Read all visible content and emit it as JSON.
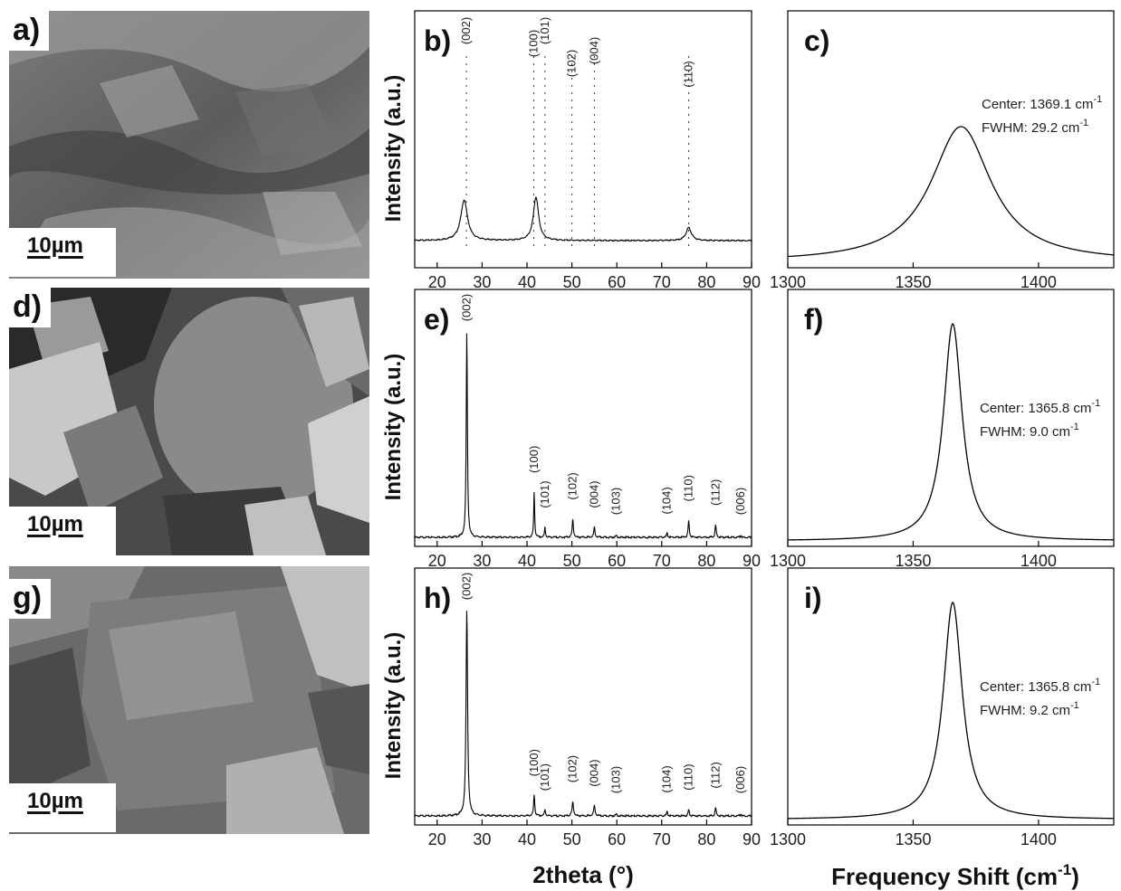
{
  "sem_panels": [
    {
      "letter": "a)",
      "scale_label": "10µm",
      "texture": "rough"
    },
    {
      "letter": "d)",
      "scale_label": "10µm",
      "texture": "flakes"
    },
    {
      "letter": "g)",
      "scale_label": "10µm",
      "texture": "flakes"
    }
  ],
  "axis_labels": {
    "xrd_ylabel": "Intensity (a.u.)",
    "xrd_xlabel": "2theta (°)",
    "raman_xlabel": "Frequency Shift (cm",
    "raman_xlabel_sup": "-1",
    "raman_xlabel_close": ")"
  },
  "chart_data": [
    {
      "panel": "b)",
      "type": "line",
      "xlim": [
        15,
        90
      ],
      "xticks": [
        20,
        30,
        40,
        50,
        60,
        70,
        80,
        90
      ],
      "ylabel": "Intensity (a.u.)",
      "dotted_reference_lines": true,
      "peaks": [
        {
          "x": 26,
          "height": 0.28,
          "width": 0.9
        },
        {
          "x": 42,
          "height": 0.3,
          "width": 0.7
        },
        {
          "x": 76,
          "height": 0.09,
          "width": 0.7
        }
      ],
      "annotations": [
        {
          "label": "(002)",
          "x": 26.5
        },
        {
          "label": "(100)",
          "x": 41.5
        },
        {
          "label": "(101)",
          "x": 44
        },
        {
          "label": "(102)",
          "x": 50
        },
        {
          "label": "(004)",
          "x": 55
        },
        {
          "label": "(110)",
          "x": 76
        }
      ]
    },
    {
      "panel": "c)",
      "type": "line",
      "xlim": [
        1300,
        1430
      ],
      "xticks": [
        1300,
        1350,
        1400
      ],
      "center": 1369.1,
      "fwhm": 29.2,
      "annotation_lines": [
        "Center: 1369.1 cm",
        "FWHM: 29.2 cm"
      ],
      "unit_sup": "-1"
    },
    {
      "panel": "e)",
      "type": "line",
      "xlim": [
        15,
        90
      ],
      "xticks": [
        20,
        30,
        40,
        50,
        60,
        70,
        80,
        90
      ],
      "ylabel": "Intensity (a.u.)",
      "peaks": [
        {
          "x": 26.6,
          "height": 1.0,
          "width": 0.15
        },
        {
          "x": 41.6,
          "height": 0.22,
          "width": 0.12
        },
        {
          "x": 44,
          "height": 0.05,
          "width": 0.12
        },
        {
          "x": 50.2,
          "height": 0.09,
          "width": 0.15
        },
        {
          "x": 55,
          "height": 0.05,
          "width": 0.15
        },
        {
          "x": 59.9,
          "height": 0.01,
          "width": 0.15
        },
        {
          "x": 71.2,
          "height": 0.02,
          "width": 0.15
        },
        {
          "x": 76,
          "height": 0.08,
          "width": 0.15
        },
        {
          "x": 82,
          "height": 0.06,
          "width": 0.15
        },
        {
          "x": 87.6,
          "height": 0.01,
          "width": 0.15
        }
      ],
      "annotations": [
        {
          "label": "(002)",
          "x": 26.6
        },
        {
          "label": "(100)",
          "x": 41.6
        },
        {
          "label": "(101)",
          "x": 44
        },
        {
          "label": "(102)",
          "x": 50.2
        },
        {
          "label": "(004)",
          "x": 55
        },
        {
          "label": "(103)",
          "x": 59.9
        },
        {
          "label": "(104)",
          "x": 71.2
        },
        {
          "label": "(110)",
          "x": 76
        },
        {
          "label": "(112)",
          "x": 82
        },
        {
          "label": "(006)",
          "x": 87.6
        }
      ]
    },
    {
      "panel": "f)",
      "type": "line",
      "xlim": [
        1300,
        1430
      ],
      "xticks": [
        1300,
        1350,
        1400
      ],
      "center": 1365.8,
      "fwhm": 9.0,
      "annotation_lines": [
        "Center: 1365.8 cm",
        "FWHM: 9.0 cm"
      ],
      "unit_sup": "-1"
    },
    {
      "panel": "h)",
      "type": "line",
      "xlim": [
        15,
        90
      ],
      "xticks": [
        20,
        30,
        40,
        50,
        60,
        70,
        80,
        90
      ],
      "ylabel": "Intensity (a.u.)",
      "peaks": [
        {
          "x": 26.6,
          "height": 1.0,
          "width": 0.2
        },
        {
          "x": 41.6,
          "height": 0.1,
          "width": 0.15
        },
        {
          "x": 44,
          "height": 0.03,
          "width": 0.15
        },
        {
          "x": 50.2,
          "height": 0.07,
          "width": 0.18
        },
        {
          "x": 55,
          "height": 0.05,
          "width": 0.18
        },
        {
          "x": 59.9,
          "height": 0.01,
          "width": 0.15
        },
        {
          "x": 71.2,
          "height": 0.02,
          "width": 0.15
        },
        {
          "x": 76,
          "height": 0.03,
          "width": 0.15
        },
        {
          "x": 82,
          "height": 0.04,
          "width": 0.15
        },
        {
          "x": 87.6,
          "height": 0.01,
          "width": 0.15
        }
      ],
      "annotations": [
        {
          "label": "(002)",
          "x": 26.6
        },
        {
          "label": "(100)",
          "x": 41.6
        },
        {
          "label": "(101)",
          "x": 44
        },
        {
          "label": "(102)",
          "x": 50.2
        },
        {
          "label": "(004)",
          "x": 55
        },
        {
          "label": "(103)",
          "x": 59.9
        },
        {
          "label": "(104)",
          "x": 71.2
        },
        {
          "label": "(110)",
          "x": 76
        },
        {
          "label": "(112)",
          "x": 82
        },
        {
          "label": "(006)",
          "x": 87.6
        }
      ]
    },
    {
      "panel": "i)",
      "type": "line",
      "xlim": [
        1300,
        1430
      ],
      "xticks": [
        1300,
        1350,
        1400
      ],
      "center": 1365.8,
      "fwhm": 9.2,
      "annotation_lines": [
        "Center: 1365.8 cm",
        "FWHM: 9.2 cm"
      ],
      "unit_sup": "-1"
    }
  ]
}
